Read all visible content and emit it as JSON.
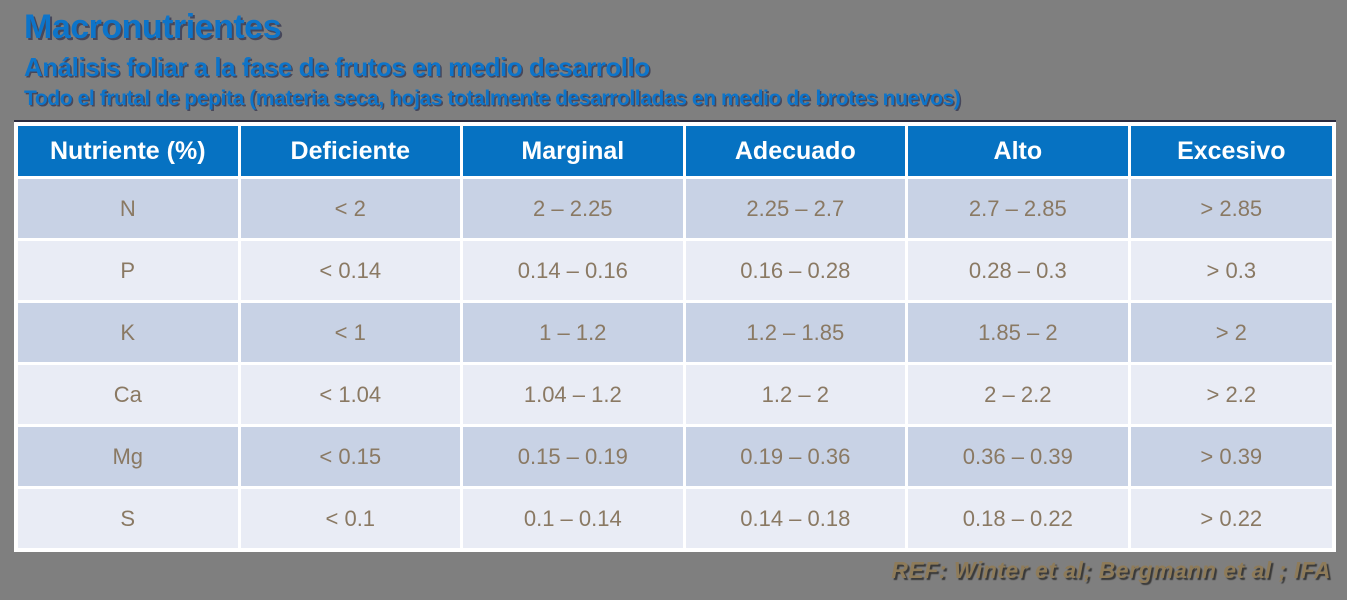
{
  "header": {
    "title": "Macronutrientes",
    "subtitle": "Análisis foliar a la fase de frutos en medio desarrollo",
    "note": "Todo el frutal de pepita (materia seca, hojas totalmente desarrolladas en medio de brotes nuevos)"
  },
  "table": {
    "columns": [
      "Nutriente (%)",
      "Deficiente",
      "Marginal",
      "Adecuado",
      "Alto",
      "Excesivo"
    ],
    "rows": [
      {
        "nutrient": "N",
        "values": [
          "< 2",
          "2 – 2.25",
          "2.25 – 2.7",
          "2.7 – 2.85",
          "> 2.85"
        ]
      },
      {
        "nutrient": "P",
        "values": [
          "< 0.14",
          "0.14 – 0.16",
          "0.16 – 0.28",
          "0.28 – 0.3",
          "> 0.3"
        ]
      },
      {
        "nutrient": "K",
        "values": [
          "< 1",
          "1 – 1.2",
          "1.2 – 1.85",
          "1.85 – 2",
          "> 2"
        ]
      },
      {
        "nutrient": "Ca",
        "values": [
          "< 1.04",
          "1.04 – 1.2",
          "1.2 – 2",
          "2 – 2.2",
          "> 2.2"
        ]
      },
      {
        "nutrient": "Mg",
        "values": [
          "< 0.15",
          "0.15 – 0.19",
          "0.19 – 0.36",
          "0.36 – 0.39",
          "> 0.39"
        ]
      },
      {
        "nutrient": "S",
        "values": [
          "< 0.1",
          "0.1 – 0.14",
          "0.14 – 0.18",
          "0.18 – 0.22",
          "> 0.22"
        ]
      }
    ]
  },
  "footer": {
    "reference": "REF: Winter et al; Bergmann et al ; IFA"
  },
  "colors": {
    "background": "#7f7f7f",
    "title_blue": "#0d74c9",
    "header_blue": "#0672c2",
    "row_dark": "#c8d2e5",
    "row_light": "#e9ecf5",
    "cell_text": "#8a7963",
    "reference_text": "#8e7b59"
  },
  "chart_data": {
    "type": "table",
    "title": "Macronutrientes — Análisis foliar a la fase de frutos en medio desarrollo",
    "columns": [
      "Nutriente (%)",
      "Deficiente",
      "Marginal",
      "Adecuado",
      "Alto",
      "Excesivo"
    ],
    "rows": [
      [
        "N",
        "< 2",
        "2 – 2.25",
        "2.25 – 2.7",
        "2.7 – 2.85",
        "> 2.85"
      ],
      [
        "P",
        "< 0.14",
        "0.14 – 0.16",
        "0.16 – 0.28",
        "0.28 – 0.3",
        "> 0.3"
      ],
      [
        "K",
        "< 1",
        "1 – 1.2",
        "1.2 – 1.85",
        "1.85 – 2",
        "> 2"
      ],
      [
        "Ca",
        "< 1.04",
        "1.04 – 1.2",
        "1.2 – 2",
        "2 – 2.2",
        "> 2.2"
      ],
      [
        "Mg",
        "< 0.15",
        "0.15 – 0.19",
        "0.19 – 0.36",
        "0.36 – 0.39",
        "> 0.39"
      ],
      [
        "S",
        "< 0.1",
        "0.1 – 0.14",
        "0.14 – 0.18",
        "0.18 – 0.22",
        "> 0.22"
      ]
    ]
  }
}
